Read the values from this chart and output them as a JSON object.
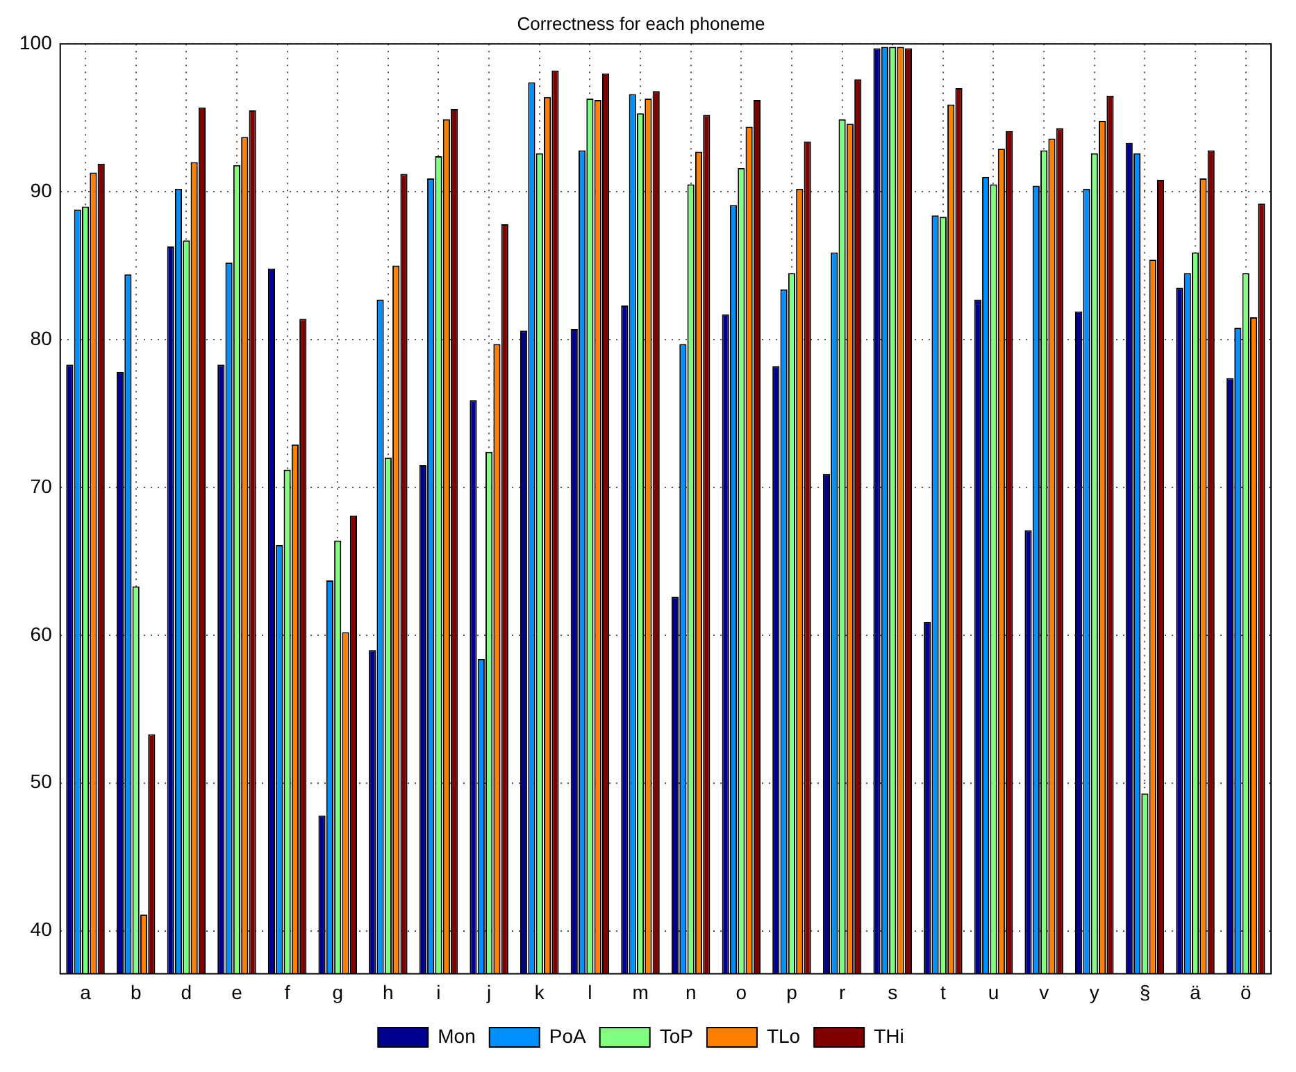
{
  "chart_data": {
    "type": "bar",
    "title": "Correctness for each phoneme",
    "categories": [
      "a",
      "b",
      "d",
      "e",
      "f",
      "g",
      "h",
      "i",
      "j",
      "k",
      "l",
      "m",
      "n",
      "o",
      "p",
      "r",
      "s",
      "t",
      "u",
      "v",
      "y",
      "§",
      "ä",
      "ö"
    ],
    "series": [
      {
        "name": "Mon",
        "color": "#00008f",
        "values": [
          78.3,
          77.8,
          86.3,
          78.3,
          84.8,
          47.8,
          59.0,
          71.5,
          75.9,
          80.6,
          80.7,
          82.3,
          62.6,
          81.7,
          78.2,
          70.9,
          99.7,
          60.9,
          82.7,
          67.1,
          81.9,
          93.3,
          83.5,
          77.4
        ]
      },
      {
        "name": "PoA",
        "color": "#008fff",
        "values": [
          88.8,
          84.4,
          90.2,
          85.2,
          66.1,
          63.7,
          82.7,
          90.9,
          58.4,
          97.4,
          92.8,
          96.6,
          79.7,
          89.1,
          83.4,
          85.9,
          99.8,
          88.4,
          91.0,
          90.4,
          90.2,
          92.6,
          84.5,
          80.8
        ]
      },
      {
        "name": "ToP",
        "color": "#80ff80",
        "values": [
          89.0,
          63.3,
          86.7,
          91.8,
          71.2,
          66.4,
          72.0,
          92.4,
          72.4,
          92.6,
          96.3,
          95.3,
          90.5,
          91.6,
          84.5,
          94.9,
          99.8,
          88.3,
          90.5,
          92.8,
          92.6,
          49.3,
          85.9,
          84.5
        ]
      },
      {
        "name": "TLo",
        "color": "#ff8000",
        "values": [
          91.3,
          41.1,
          92.0,
          93.7,
          72.9,
          60.2,
          85.0,
          94.9,
          79.7,
          96.4,
          96.2,
          96.3,
          92.7,
          94.4,
          90.2,
          94.6,
          99.8,
          95.9,
          92.9,
          93.6,
          94.8,
          85.4,
          90.9,
          81.5
        ]
      },
      {
        "name": "THi",
        "color": "#800000",
        "values": [
          91.9,
          53.3,
          95.7,
          95.5,
          81.4,
          68.1,
          91.2,
          95.6,
          87.8,
          98.2,
          98.0,
          96.8,
          95.2,
          96.2,
          93.4,
          97.6,
          99.7,
          97.0,
          94.1,
          94.3,
          96.5,
          90.8,
          92.8,
          89.2
        ]
      }
    ],
    "ylim": [
      37.1,
      100
    ],
    "yticks": [
      40,
      50,
      60,
      70,
      80,
      90,
      100
    ],
    "grid": true,
    "legend": "bottom"
  }
}
